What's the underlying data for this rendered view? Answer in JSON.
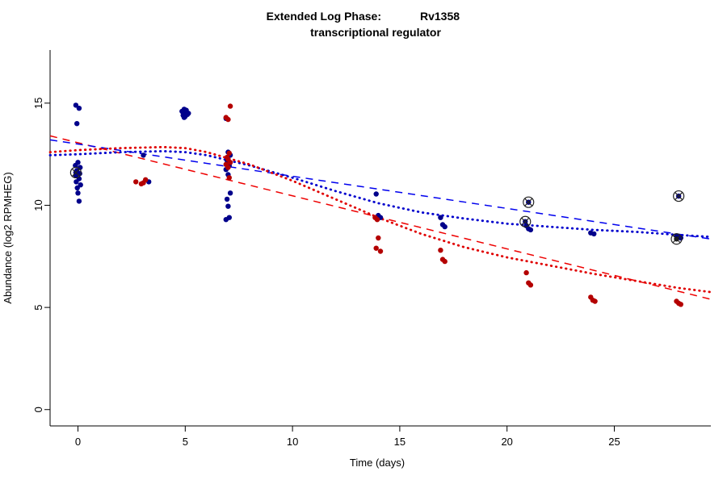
{
  "title": {
    "prefix": "Extended Log Phase:",
    "gene": "Rv1358",
    "subtitle": "transcriptional regulator"
  },
  "chart_data": {
    "type": "scatter",
    "xlabel": "Time  (days)",
    "ylabel": "Abundance  (log2 RPMHEG)",
    "xlim": [
      -1.3,
      29.5
    ],
    "ylim": [
      -0.8,
      17.6
    ],
    "x_ticks": [
      0,
      5,
      10,
      15,
      20,
      25
    ],
    "y_ticks": [
      0,
      5,
      10,
      15
    ],
    "grid": false,
    "legend": "none",
    "colors": {
      "blue_points": "#00008B",
      "red_points": "#B40000",
      "blue_line": "#0000EE",
      "red_line": "#EE0000",
      "flag_ring": "#222222"
    },
    "series": [
      {
        "name": "blue-condition-points",
        "color": "#00008B",
        "points": [
          [
            -0.1,
            14.9
          ],
          [
            0.05,
            14.75
          ],
          [
            -0.05,
            14.0
          ],
          [
            0.0,
            12.1
          ],
          [
            -0.12,
            11.95
          ],
          [
            0.1,
            11.85
          ],
          [
            -0.05,
            11.7
          ],
          [
            0.08,
            11.55
          ],
          [
            -0.1,
            11.45
          ],
          [
            0.05,
            11.3
          ],
          [
            -0.08,
            11.15
          ],
          [
            0.12,
            11.0
          ],
          [
            -0.03,
            10.85
          ],
          [
            0.0,
            10.6
          ],
          [
            0.05,
            10.2
          ],
          [
            3.05,
            12.45
          ],
          [
            3.3,
            11.15
          ],
          [
            4.85,
            14.6
          ],
          [
            4.95,
            14.7
          ],
          [
            5.0,
            14.55
          ],
          [
            5.05,
            14.65
          ],
          [
            5.1,
            14.45
          ],
          [
            4.9,
            14.4
          ],
          [
            5.0,
            14.35
          ],
          [
            5.15,
            14.5
          ],
          [
            4.95,
            14.3
          ],
          [
            6.9,
            14.25
          ],
          [
            7.0,
            12.6
          ],
          [
            7.1,
            12.45
          ],
          [
            6.95,
            12.2
          ],
          [
            7.05,
            11.95
          ],
          [
            6.9,
            11.75
          ],
          [
            7.0,
            11.5
          ],
          [
            7.1,
            10.6
          ],
          [
            6.95,
            10.3
          ],
          [
            7.0,
            9.95
          ],
          [
            7.05,
            9.4
          ],
          [
            6.9,
            9.3
          ],
          [
            13.9,
            10.55
          ],
          [
            14.0,
            9.5
          ],
          [
            14.1,
            9.4
          ],
          [
            16.9,
            9.4
          ],
          [
            17.0,
            9.05
          ],
          [
            17.1,
            8.95
          ],
          [
            20.9,
            9.0
          ],
          [
            21.0,
            8.85
          ],
          [
            21.1,
            8.8
          ],
          [
            23.9,
            8.65
          ],
          [
            24.05,
            8.6
          ],
          [
            27.9,
            8.5
          ],
          [
            28.0,
            8.45
          ],
          [
            28.1,
            8.4
          ]
        ]
      },
      {
        "name": "red-condition-points",
        "color": "#B40000",
        "points": [
          [
            2.7,
            11.15
          ],
          [
            2.95,
            11.05
          ],
          [
            3.05,
            11.1
          ],
          [
            3.15,
            11.25
          ],
          [
            7.1,
            14.85
          ],
          [
            6.9,
            14.3
          ],
          [
            7.0,
            14.2
          ],
          [
            7.05,
            12.55
          ],
          [
            6.95,
            12.35
          ],
          [
            7.0,
            12.25
          ],
          [
            7.1,
            12.1
          ],
          [
            6.9,
            12.0
          ],
          [
            7.0,
            11.85
          ],
          [
            7.05,
            11.35
          ],
          [
            13.85,
            9.4
          ],
          [
            13.95,
            9.3
          ],
          [
            14.0,
            8.4
          ],
          [
            13.9,
            7.9
          ],
          [
            14.1,
            7.75
          ],
          [
            16.9,
            7.8
          ],
          [
            17.0,
            7.35
          ],
          [
            17.1,
            7.25
          ],
          [
            20.9,
            6.7
          ],
          [
            21.0,
            6.2
          ],
          [
            21.1,
            6.1
          ],
          [
            23.9,
            5.5
          ],
          [
            24.0,
            5.35
          ],
          [
            24.1,
            5.3
          ],
          [
            27.9,
            5.3
          ],
          [
            28.0,
            5.2
          ],
          [
            28.1,
            5.15
          ]
        ]
      }
    ],
    "flagged_points": [
      {
        "x": -0.1,
        "y": 11.6,
        "color": "#00008B"
      },
      {
        "x": 21.0,
        "y": 10.15,
        "color": "#00008B"
      },
      {
        "x": 20.85,
        "y": 9.2,
        "color": "#00008B"
      },
      {
        "x": 28.0,
        "y": 10.45,
        "color": "#00008B"
      },
      {
        "x": 27.9,
        "y": 8.35,
        "color": "#1a1a1a"
      }
    ],
    "lines": [
      {
        "name": "red-dashed-linear-fit",
        "color": "#EE0000",
        "style": "dashed",
        "width": 1.5,
        "points": [
          [
            -1.3,
            13.4
          ],
          [
            29.5,
            5.4
          ]
        ]
      },
      {
        "name": "blue-dashed-linear-fit",
        "color": "#0000EE",
        "style": "dashed",
        "width": 1.5,
        "points": [
          [
            -1.3,
            13.2
          ],
          [
            29.5,
            8.35
          ]
        ]
      },
      {
        "name": "blue-dotted-smooth-fit",
        "color": "#0000CD",
        "style": "dotted",
        "width": 2.8,
        "points": [
          [
            -1.3,
            12.45
          ],
          [
            0,
            12.5
          ],
          [
            2,
            12.6
          ],
          [
            4,
            12.65
          ],
          [
            5,
            12.6
          ],
          [
            6,
            12.45
          ],
          [
            8,
            11.95
          ],
          [
            10,
            11.35
          ],
          [
            12,
            10.7
          ],
          [
            14,
            10.1
          ],
          [
            16,
            9.65
          ],
          [
            18,
            9.35
          ],
          [
            20,
            9.1
          ],
          [
            22,
            8.95
          ],
          [
            24,
            8.8
          ],
          [
            26,
            8.7
          ],
          [
            28,
            8.55
          ],
          [
            29.5,
            8.45
          ]
        ]
      },
      {
        "name": "red-dotted-smooth-fit",
        "color": "#E00000",
        "style": "dotted",
        "width": 2.8,
        "points": [
          [
            -1.3,
            12.6
          ],
          [
            0,
            12.7
          ],
          [
            2,
            12.8
          ],
          [
            4,
            12.85
          ],
          [
            5,
            12.8
          ],
          [
            6,
            12.6
          ],
          [
            8,
            12.0
          ],
          [
            10,
            11.2
          ],
          [
            12,
            10.3
          ],
          [
            14,
            9.4
          ],
          [
            16,
            8.6
          ],
          [
            18,
            7.95
          ],
          [
            20,
            7.45
          ],
          [
            22,
            7.05
          ],
          [
            24,
            6.65
          ],
          [
            26,
            6.3
          ],
          [
            28,
            5.95
          ],
          [
            29.5,
            5.75
          ]
        ]
      }
    ]
  }
}
